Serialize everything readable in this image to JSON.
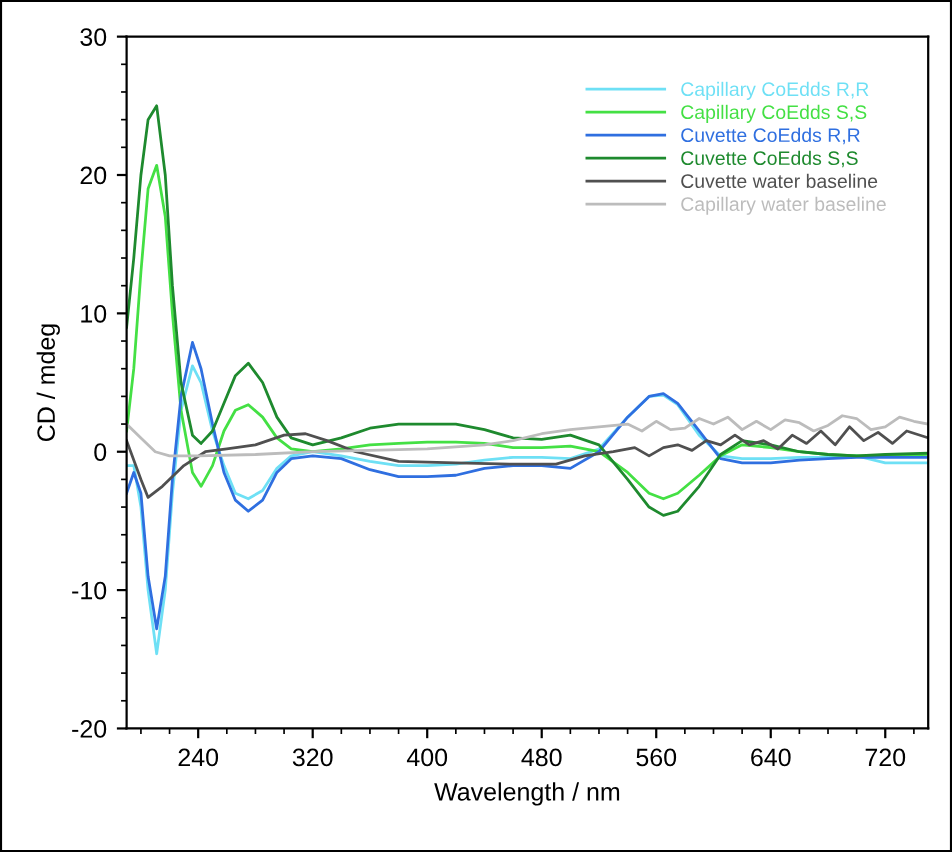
{
  "chart_data": {
    "type": "line",
    "xlabel": "Wavelength / nm",
    "ylabel": "CD / mdeg",
    "xlim": [
      190,
      750
    ],
    "ylim": [
      -20,
      30
    ],
    "xticks": [
      240,
      320,
      400,
      480,
      560,
      640,
      720
    ],
    "yticks": [
      -20,
      -10,
      0,
      10,
      20,
      30
    ],
    "grid": false,
    "legend": "top right",
    "marker": "none",
    "line_style": "solid",
    "x": [
      190,
      195,
      200,
      205,
      211,
      217,
      222,
      228,
      236,
      242,
      250,
      258,
      266,
      275,
      285,
      295,
      305,
      320,
      340,
      360,
      380,
      400,
      420,
      440,
      460,
      480,
      500,
      520,
      540,
      555,
      565,
      575,
      590,
      605,
      620,
      640,
      660,
      680,
      700,
      720,
      750
    ],
    "series": [
      {
        "name": "Capillary CoEdds R,R",
        "color": "#6ee0f5",
        "values": [
          -1,
          -1,
          -4,
          -10,
          -14.6,
          -10,
          -3,
          3,
          6.2,
          5,
          1.5,
          -1,
          -3,
          -3.4,
          -2.8,
          -1.2,
          -0.3,
          0,
          -0.3,
          -0.7,
          -1,
          -1,
          -0.9,
          -0.6,
          -0.4,
          -0.4,
          -0.5,
          0.2,
          2.5,
          4,
          4.1,
          3.4,
          1.2,
          -0.3,
          -0.5,
          -0.5,
          -0.4,
          -0.4,
          -0.3,
          -0.8,
          -0.8
        ]
      },
      {
        "name": "Capillary CoEdds S,S",
        "color": "#44e044",
        "values": [
          1.5,
          6,
          13,
          19,
          20.7,
          17,
          10,
          3,
          -1.5,
          -2.5,
          -1,
          1.5,
          3,
          3.4,
          2.5,
          1,
          0.2,
          0,
          0.2,
          0.5,
          0.6,
          0.7,
          0.7,
          0.6,
          0.3,
          0.3,
          0.4,
          0,
          -1.5,
          -3,
          -3.4,
          -3,
          -1.7,
          -0.3,
          0.5,
          0.3,
          0,
          -0.2,
          -0.3,
          -0.3,
          -0.2
        ]
      },
      {
        "name": "Cuvette CoEdds R,R",
        "color": "#2f6fe0",
        "values": [
          -3,
          -1.5,
          -3,
          -9,
          -12.8,
          -9,
          -2,
          4,
          7.9,
          6,
          2,
          -1.5,
          -3.5,
          -4.3,
          -3.5,
          -1.5,
          -0.5,
          -0.3,
          -0.5,
          -1.3,
          -1.8,
          -1.8,
          -1.7,
          -1.2,
          -1,
          -1,
          -1.2,
          0,
          2.5,
          4,
          4.2,
          3.5,
          1.5,
          -0.5,
          -0.8,
          -0.8,
          -0.6,
          -0.5,
          -0.4,
          -0.4,
          -0.4
        ]
      },
      {
        "name": "Cuvette CoEdds S,S",
        "color": "#1e8a2e",
        "values": [
          9,
          14,
          20,
          24,
          25,
          20,
          12,
          5,
          1.2,
          0.6,
          1.5,
          3.5,
          5.5,
          6.4,
          5,
          2.5,
          1,
          0.5,
          1,
          1.7,
          2,
          2,
          2,
          1.6,
          1,
          0.9,
          1.2,
          0.5,
          -2,
          -4,
          -4.6,
          -4.3,
          -2.5,
          -0.2,
          0.8,
          0.5,
          0,
          -0.2,
          -0.3,
          -0.2,
          -0.1
        ]
      },
      {
        "name": "Cuvette water baseline",
        "color": "#505050",
        "x": [
          190,
          200,
          205,
          215,
          230,
          245,
          260,
          280,
          300,
          315,
          330,
          350,
          380,
          420,
          460,
          490,
          510,
          530,
          545,
          555,
          565,
          575,
          585,
          595,
          605,
          615,
          625,
          635,
          645,
          655,
          665,
          675,
          685,
          695,
          705,
          715,
          725,
          735,
          750
        ],
        "values": [
          0.8,
          -2,
          -3.3,
          -2.5,
          -1,
          0,
          0.2,
          0.5,
          1.2,
          1.3,
          0.8,
          0,
          -0.7,
          -0.8,
          -0.9,
          -0.9,
          -0.3,
          0,
          0.3,
          -0.3,
          0.3,
          0.5,
          0.1,
          0.8,
          0.5,
          1.2,
          0.5,
          0.8,
          0.2,
          1.2,
          0.6,
          1.5,
          0.5,
          1.8,
          0.8,
          1.4,
          0.6,
          1.5,
          1
        ]
      },
      {
        "name": "Capillary water baseline",
        "color": "#bcbcbc",
        "x": [
          190,
          200,
          210,
          220,
          240,
          280,
          320,
          360,
          400,
          440,
          460,
          480,
          500,
          520,
          540,
          550,
          560,
          570,
          580,
          590,
          600,
          610,
          620,
          630,
          640,
          650,
          660,
          670,
          680,
          690,
          700,
          710,
          720,
          730,
          740,
          750
        ],
        "values": [
          2,
          1,
          0,
          -0.3,
          -0.3,
          -0.2,
          0,
          0.1,
          0.2,
          0.5,
          0.8,
          1.3,
          1.6,
          1.8,
          2,
          1.5,
          2.2,
          1.6,
          1.7,
          2.4,
          2,
          2.5,
          1.6,
          2.2,
          1.6,
          2.3,
          2.1,
          1.5,
          1.9,
          2.6,
          2.4,
          1.6,
          1.8,
          2.5,
          2.2,
          2
        ]
      }
    ]
  }
}
